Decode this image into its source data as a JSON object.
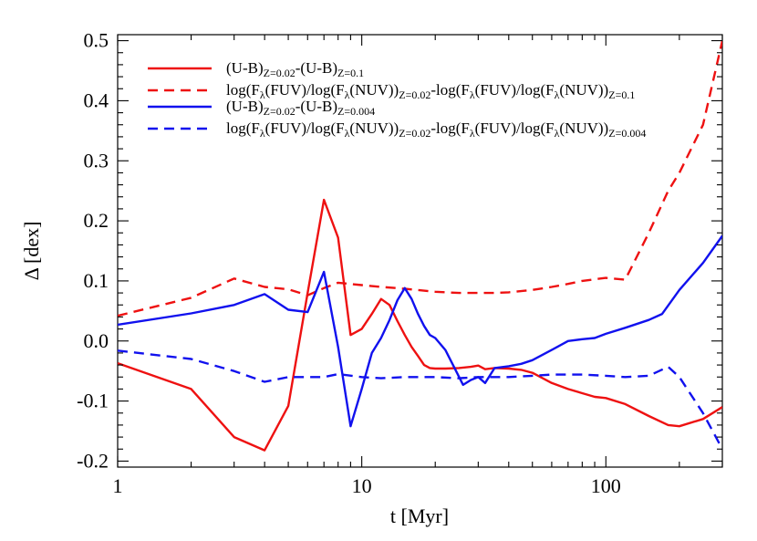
{
  "chart_data": {
    "type": "line",
    "title": "",
    "xlabel": "t [Myr]",
    "ylabel": "Δ [dex]",
    "xscale": "log",
    "xlim": [
      1,
      300
    ],
    "ylim": [
      -0.21,
      0.51
    ],
    "grid": false,
    "legend_position": "top-left",
    "x_ticks": [
      {
        "value": 1,
        "label": "1"
      },
      {
        "value": 10,
        "label": "10"
      },
      {
        "value": 100,
        "label": "100"
      }
    ],
    "y_ticks": [
      {
        "value": -0.2,
        "label": "-0.2"
      },
      {
        "value": -0.1,
        "label": "-0.1"
      },
      {
        "value": 0.0,
        "label": "0.0"
      },
      {
        "value": 0.1,
        "label": "0.1"
      },
      {
        "value": 0.2,
        "label": "0.2"
      },
      {
        "value": 0.3,
        "label": "0.3"
      },
      {
        "value": 0.4,
        "label": "0.4"
      },
      {
        "value": 0.5,
        "label": "0.5"
      }
    ],
    "series": [
      {
        "color": "#ee1111",
        "dash": "solid",
        "legend": [
          {
            "t": "(U-B)"
          },
          {
            "t": "Z=0.02",
            "sub": true
          },
          {
            "t": "-(U-B)"
          },
          {
            "t": "Z=0.1",
            "sub": true
          }
        ],
        "x": [
          1,
          2,
          3,
          4,
          5,
          6,
          7,
          8,
          9,
          10,
          11,
          12,
          13,
          14,
          15,
          16,
          17,
          18,
          19,
          20,
          22,
          25,
          28,
          30,
          32,
          35,
          40,
          45,
          50,
          60,
          70,
          80,
          90,
          100,
          120,
          150,
          180,
          200,
          250,
          300
        ],
        "y": [
          -0.037,
          -0.08,
          -0.16,
          -0.182,
          -0.108,
          0.08,
          0.235,
          0.172,
          0.01,
          0.02,
          0.045,
          0.07,
          0.06,
          0.033,
          0.01,
          -0.01,
          -0.025,
          -0.04,
          -0.045,
          -0.046,
          -0.046,
          -0.045,
          -0.043,
          -0.041,
          -0.047,
          -0.045,
          -0.046,
          -0.048,
          -0.053,
          -0.07,
          -0.08,
          -0.087,
          -0.093,
          -0.095,
          -0.105,
          -0.125,
          -0.14,
          -0.142,
          -0.13,
          -0.11
        ]
      },
      {
        "color": "#ee1111",
        "dash": "dashed",
        "legend": [
          {
            "t": "log(F"
          },
          {
            "t": "λ",
            "sub": true
          },
          {
            "t": "(FUV)/log(F"
          },
          {
            "t": "λ",
            "sub": true
          },
          {
            "t": "(NUV))"
          },
          {
            "t": "Z=0.02",
            "sub": true
          },
          {
            "t": "-log(F"
          },
          {
            "t": "λ",
            "sub": true
          },
          {
            "t": "(FUV)/log(F"
          },
          {
            "t": "λ",
            "sub": true
          },
          {
            "t": "(NUV))"
          },
          {
            "t": "Z=0.1",
            "sub": true
          }
        ],
        "x": [
          1,
          2,
          3,
          4,
          5,
          6,
          7,
          8,
          10,
          12,
          15,
          20,
          25,
          30,
          35,
          40,
          50,
          60,
          70,
          80,
          100,
          120,
          150,
          180,
          200,
          250,
          300
        ],
        "y": [
          0.042,
          0.072,
          0.104,
          0.09,
          0.086,
          0.076,
          0.088,
          0.097,
          0.093,
          0.09,
          0.087,
          0.082,
          0.08,
          0.08,
          0.08,
          0.081,
          0.085,
          0.09,
          0.095,
          0.1,
          0.105,
          0.102,
          0.18,
          0.25,
          0.28,
          0.36,
          0.5
        ]
      },
      {
        "color": "#1111ee",
        "dash": "solid",
        "legend": [
          {
            "t": "(U-B)"
          },
          {
            "t": "Z=0.02",
            "sub": true
          },
          {
            "t": "-(U-B)"
          },
          {
            "t": "Z=0.004",
            "sub": true
          }
        ],
        "x": [
          1,
          2,
          3,
          4,
          5,
          6,
          7,
          8,
          9,
          10,
          11,
          12,
          13,
          14,
          15,
          16,
          17,
          18,
          19,
          20,
          22,
          24,
          26,
          28,
          30,
          32,
          35,
          40,
          45,
          50,
          60,
          70,
          80,
          90,
          100,
          120,
          150,
          170,
          200,
          250,
          300
        ],
        "y": [
          0.027,
          0.046,
          0.06,
          0.078,
          0.052,
          0.048,
          0.115,
          -0.01,
          -0.142,
          -0.08,
          -0.02,
          0.005,
          0.035,
          0.068,
          0.088,
          0.07,
          0.045,
          0.025,
          0.01,
          0.005,
          -0.015,
          -0.045,
          -0.073,
          -0.065,
          -0.06,
          -0.07,
          -0.045,
          -0.042,
          -0.038,
          -0.032,
          -0.015,
          0.0,
          0.003,
          0.005,
          0.012,
          0.022,
          0.035,
          0.045,
          0.085,
          0.13,
          0.175
        ]
      },
      {
        "color": "#1111ee",
        "dash": "dashed",
        "legend": [
          {
            "t": "log(F"
          },
          {
            "t": "λ",
            "sub": true
          },
          {
            "t": "(FUV)/log(F"
          },
          {
            "t": "λ",
            "sub": true
          },
          {
            "t": "(NUV))"
          },
          {
            "t": "Z=0.02",
            "sub": true
          },
          {
            "t": "-log(F"
          },
          {
            "t": "λ",
            "sub": true
          },
          {
            "t": "(FUV)/log(F"
          },
          {
            "t": "λ",
            "sub": true
          },
          {
            "t": "(NUV))"
          },
          {
            "t": "Z=0.004",
            "sub": true
          }
        ],
        "x": [
          1,
          2,
          3,
          4,
          5,
          6,
          7,
          8,
          10,
          12,
          15,
          20,
          25,
          30,
          40,
          50,
          60,
          80,
          100,
          120,
          150,
          180,
          200,
          250,
          300
        ],
        "y": [
          -0.016,
          -0.03,
          -0.05,
          -0.068,
          -0.06,
          -0.06,
          -0.06,
          -0.055,
          -0.06,
          -0.062,
          -0.06,
          -0.06,
          -0.062,
          -0.06,
          -0.06,
          -0.058,
          -0.056,
          -0.056,
          -0.058,
          -0.06,
          -0.058,
          -0.043,
          -0.06,
          -0.12,
          -0.18
        ]
      }
    ]
  }
}
